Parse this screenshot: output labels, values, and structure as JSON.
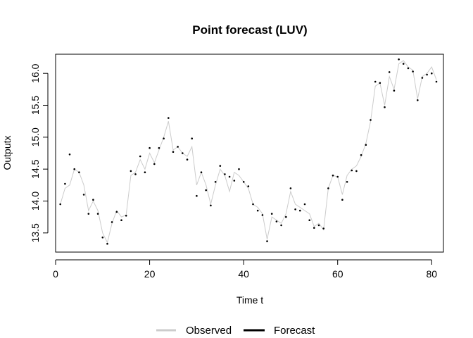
{
  "chart_data": {
    "type": "line",
    "title": "Point forecast (LUV)",
    "xlabel": "Time t",
    "ylabel": "Outputx",
    "xlim": [
      0,
      82.5
    ],
    "ylim": [
      13.2,
      16.3
    ],
    "x_ticks": [
      0,
      20,
      40,
      60,
      80
    ],
    "y_ticks": [
      13.5,
      14.0,
      14.5,
      15.0,
      15.5,
      16.0
    ],
    "x_tick_labels": [
      "0",
      "20",
      "40",
      "60",
      "80"
    ],
    "y_tick_labels": [
      "13.5",
      "14.0",
      "14.5",
      "15.0",
      "15.5",
      "16.0"
    ],
    "grid": false,
    "legend_position": "bottom",
    "series": [
      {
        "name": "Observed",
        "style": "line",
        "color": "#cccccc",
        "x": [
          1,
          2,
          3,
          4,
          5,
          6,
          7,
          8,
          9,
          10,
          11,
          12,
          13,
          14,
          15,
          16,
          17,
          18,
          19,
          20,
          21,
          22,
          23,
          24,
          25,
          26,
          27,
          28,
          29,
          30,
          31,
          32,
          33,
          34,
          35,
          36,
          37,
          38,
          39,
          40,
          41,
          42,
          43,
          44,
          45,
          46,
          47,
          48,
          49,
          50,
          51,
          52,
          53,
          54,
          55,
          56,
          57,
          58,
          59,
          60,
          61,
          62,
          63,
          64,
          65,
          66,
          67,
          68,
          69,
          70,
          71,
          72,
          73,
          74,
          75,
          76,
          77,
          78,
          79,
          80,
          81
        ],
        "values": [
          13.95,
          14.2,
          14.25,
          14.5,
          14.45,
          14.25,
          13.85,
          14.0,
          13.85,
          13.5,
          13.35,
          13.65,
          13.85,
          13.75,
          13.78,
          14.4,
          14.45,
          14.65,
          14.5,
          14.75,
          14.6,
          14.8,
          15.0,
          15.25,
          14.8,
          14.85,
          14.75,
          14.7,
          14.85,
          14.25,
          14.45,
          14.25,
          13.95,
          14.25,
          14.5,
          14.4,
          14.15,
          14.45,
          14.4,
          14.3,
          14.2,
          13.95,
          13.9,
          13.8,
          13.4,
          13.75,
          13.7,
          13.65,
          13.8,
          14.15,
          13.95,
          13.9,
          13.85,
          13.8,
          13.6,
          13.65,
          13.55,
          14.2,
          14.4,
          14.38,
          14.1,
          14.4,
          14.5,
          14.55,
          14.7,
          14.9,
          15.25,
          15.8,
          15.85,
          15.5,
          15.95,
          15.75,
          16.15,
          16.2,
          16.1,
          16.05,
          15.6,
          15.95,
          16.0,
          16.1,
          15.9
        ]
      },
      {
        "name": "Forecast",
        "style": "points",
        "color": "#000000",
        "x": [
          1,
          2,
          3,
          4,
          5,
          6,
          7,
          8,
          9,
          10,
          11,
          12,
          13,
          14,
          15,
          16,
          17,
          18,
          19,
          20,
          21,
          22,
          23,
          24,
          25,
          26,
          27,
          28,
          29,
          30,
          31,
          32,
          33,
          34,
          35,
          36,
          37,
          38,
          39,
          40,
          41,
          42,
          43,
          44,
          45,
          46,
          47,
          48,
          49,
          50,
          51,
          52,
          53,
          54,
          55,
          56,
          57,
          58,
          59,
          60,
          61,
          62,
          63,
          64,
          65,
          66,
          67,
          68,
          69,
          70,
          71,
          72,
          73,
          74,
          75,
          76,
          77,
          78,
          79,
          80,
          81
        ],
        "values": [
          13.95,
          14.27,
          14.73,
          14.5,
          14.45,
          14.1,
          13.8,
          14.02,
          13.8,
          13.43,
          13.33,
          13.67,
          13.83,
          13.7,
          13.77,
          14.47,
          14.42,
          14.7,
          14.45,
          14.83,
          14.58,
          14.83,
          14.98,
          15.3,
          14.77,
          14.85,
          14.75,
          14.65,
          14.98,
          14.08,
          14.45,
          14.17,
          13.93,
          14.3,
          14.55,
          14.42,
          14.38,
          14.32,
          14.5,
          14.3,
          14.23,
          13.95,
          13.85,
          13.78,
          13.37,
          13.8,
          13.68,
          13.62,
          13.75,
          14.2,
          13.87,
          13.85,
          13.95,
          13.7,
          13.58,
          13.62,
          13.57,
          14.2,
          14.4,
          14.38,
          14.02,
          14.3,
          14.48,
          14.47,
          14.72,
          14.88,
          15.27,
          15.87,
          15.85,
          15.47,
          16.02,
          15.73,
          16.22,
          16.15,
          16.08,
          16.03,
          15.58,
          15.93,
          15.98,
          16.0,
          15.87
        ]
      }
    ]
  }
}
